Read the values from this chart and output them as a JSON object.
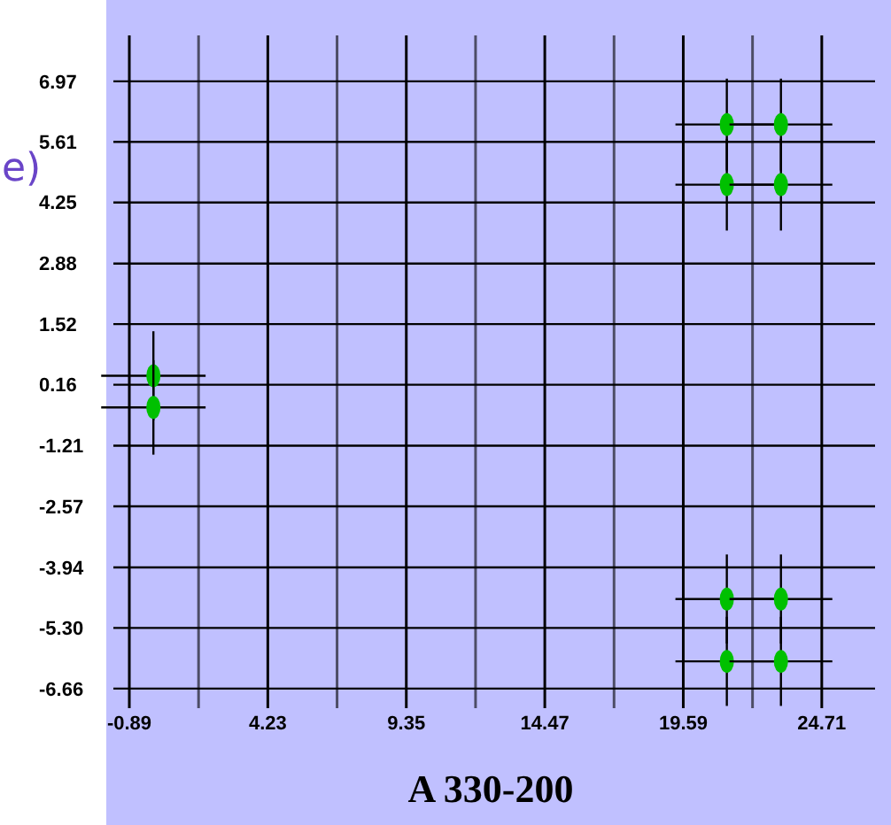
{
  "chart_data": {
    "type": "scatter",
    "title": "A 330-200",
    "annotations": [
      "e)"
    ],
    "x": [
      0,
      0,
      21.2,
      23.2,
      21.2,
      23.2,
      21.2,
      23.2,
      21.2,
      23.2
    ],
    "series": [
      {
        "color": "#00c000",
        "values": [
          0.36,
          -0.35,
          6.0,
          6.0,
          4.65,
          4.65,
          -4.65,
          -4.65,
          -6.05,
          -6.05
        ],
        "errors": [
          1.0,
          1.06,
          1.03,
          1.03,
          1.03,
          1.03,
          1.0,
          1.0,
          1.0,
          1.0
        ],
        "xerrors": [
          1.93,
          1.93,
          1.9,
          1.9,
          1.9,
          1.9,
          1.9,
          1.9,
          1.9,
          1.9
        ]
      }
    ],
    "xlim": [
      -1.48,
      26.68
    ],
    "ylim": [
      -7.1,
      8.0
    ],
    "xticks": [
      -0.89,
      {
        "value": 1.67,
        "label": null
      },
      4.23,
      {
        "value": 6.79,
        "label": null
      },
      9.35,
      {
        "value": 11.91,
        "label": null
      },
      14.47,
      {
        "value": 17.03,
        "label": null
      },
      19.59,
      {
        "value": 22.15,
        "label": null
      },
      24.71
    ],
    "yticks": [
      6.97,
      5.61,
      4.25,
      2.88,
      1.52,
      0.16,
      -1.21,
      -2.57,
      -3.94,
      "-5.30",
      -6.66
    ],
    "grid": true,
    "marker": "circle"
  }
}
